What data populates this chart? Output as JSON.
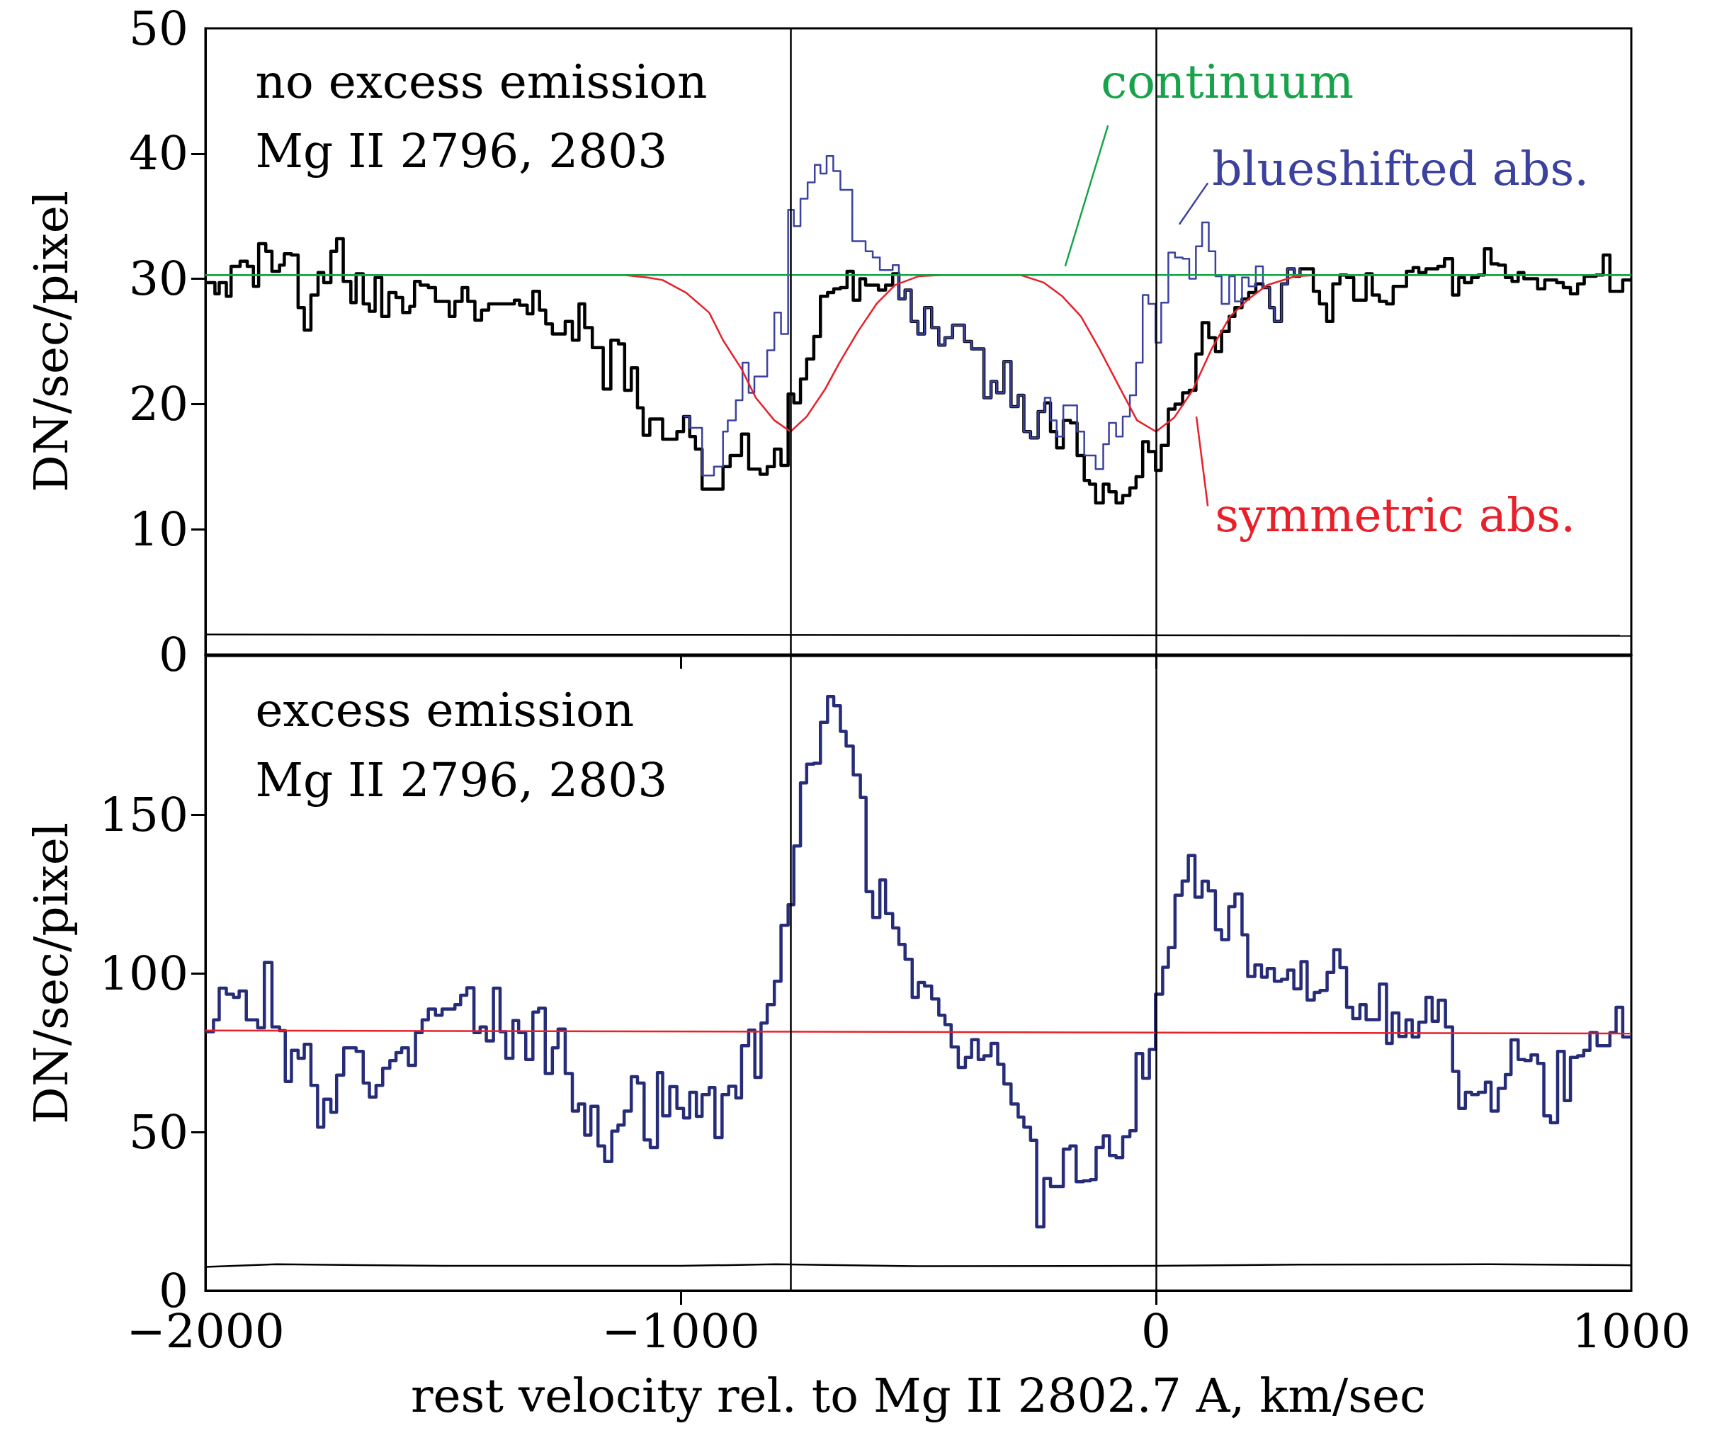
{
  "chart_data": [
    {
      "type": "step",
      "ylabel": "DN/sec/pixel",
      "annotations": [
        "no excess emission",
        "Mg II 2796, 2803"
      ],
      "xlim": [
        -2000,
        1000
      ],
      "xticks": [
        {
          "value": -2000,
          "label": null
        },
        {
          "value": -1000,
          "label": null
        },
        {
          "value": 0,
          "label": null
        },
        {
          "value": 1000,
          "label": null
        }
      ],
      "ylim": [
        0,
        50
      ],
      "yticks": [
        0,
        10,
        20,
        30,
        40,
        50
      ],
      "tick_labels": "y",
      "ref_lines": [
        {
          "axis": "x",
          "value": -768,
          "color": "#000000"
        },
        {
          "axis": "x",
          "value": 0,
          "color": "#000000"
        }
      ],
      "series": [
        {
          "color": "#000000",
          "x": [
            -2000,
            -1980,
            -1971,
            -1956,
            -1946,
            -1927,
            -1912,
            -1899,
            -1888,
            -1873,
            -1860,
            -1844,
            -1834,
            -1819,
            -1805,
            -1792,
            -1778,
            -1763,
            -1751,
            -1736,
            -1724,
            -1710,
            -1694,
            -1683,
            -1668,
            -1655,
            -1643,
            -1629,
            -1614,
            -1599,
            -1585,
            -1570,
            -1560,
            -1548,
            -1531,
            -1516,
            -1487,
            -1475,
            -1460,
            -1448,
            -1433,
            -1419,
            -1404,
            -1350,
            -1339,
            -1323,
            -1311,
            -1297,
            -1284,
            -1270,
            -1243,
            -1228,
            -1214,
            -1202,
            -1186,
            -1163,
            -1147,
            -1131,
            -1118,
            -1104,
            -1091,
            -1079,
            -1065,
            -1038,
            -1008,
            -994,
            -981,
            -969,
            -955,
            -911,
            -896,
            -872,
            -857,
            -833,
            -818,
            -803,
            -789,
            -774,
            -762,
            -748,
            -735,
            -720,
            -706,
            -691,
            -678,
            -664,
            -650,
            -637,
            -623,
            -611,
            -584,
            -569,
            -554,
            -541,
            -528,
            -515,
            -501,
            -487,
            -472,
            -457,
            -444,
            -428,
            -403,
            -388,
            -362,
            -347,
            -335,
            -320,
            -305,
            -290,
            -278,
            -264,
            -248,
            -234,
            -222,
            -209,
            -195,
            -180,
            -166,
            -151,
            -140,
            -127,
            -111,
            -99,
            -84,
            -70,
            -55,
            -42,
            -28,
            -16,
            -1,
            11,
            26,
            40,
            56,
            70,
            84,
            97,
            111,
            125,
            138,
            154,
            166,
            181,
            195,
            210,
            225,
            239,
            249,
            264,
            277,
            291,
            303,
            331,
            344,
            359,
            372,
            387,
            401,
            416,
            442,
            455,
            470,
            485,
            499,
            527,
            541,
            553,
            568,
            593,
            607,
            624,
            637,
            649,
            664,
            678,
            691,
            705,
            720,
            735,
            749,
            762,
            774,
            803,
            818,
            843,
            857,
            872,
            887,
            901,
            926,
            941,
            955,
            982,
            1000
          ],
          "values": [
            29.7,
            28.8,
            29.7,
            28.6,
            31,
            31.4,
            31,
            29.4,
            32.8,
            32.2,
            30.6,
            31.1,
            32,
            31.9,
            27.7,
            25.9,
            28.7,
            30.5,
            29.7,
            32.2,
            33.2,
            29.8,
            28.1,
            30.4,
            28,
            27.4,
            30.1,
            27,
            28.9,
            28.5,
            27.3,
            27.8,
            29.8,
            29.5,
            29.3,
            28.2,
            27,
            28.2,
            29.3,
            28.2,
            26.7,
            27.5,
            28,
            28.3,
            27.9,
            27.2,
            29,
            27.5,
            26.4,
            25.6,
            26.6,
            25.1,
            28,
            26.1,
            24.5,
            21.2,
            25.1,
            24.8,
            21.1,
            22.9,
            19.7,
            17.5,
            18.8,
            17.2,
            17.8,
            19,
            17.4,
            16.4,
            13.2,
            15,
            15.9,
            17.6,
            14.8,
            14.4,
            15,
            16.4,
            15.1,
            20.8,
            20.1,
            22,
            23.6,
            25.4,
            28.6,
            28.9,
            29.2,
            29.3,
            30.6,
            28.3,
            30,
            29.5,
            29.1,
            29.5,
            30.4,
            28.4,
            29.1,
            26.6,
            25.6,
            27.7,
            26.1,
            24.7,
            25.3,
            26.3,
            25,
            24.4,
            20.5,
            21.8,
            20.9,
            23.4,
            19.8,
            20.7,
            17.8,
            17.3,
            19.4,
            20.1,
            17.8,
            16.5,
            18.7,
            18.5,
            15.9,
            13.9,
            13.6,
            12.1,
            13.6,
            13,
            12.1,
            12.7,
            13.3,
            14.2,
            17,
            16.2,
            14.7,
            16.7,
            19.6,
            20,
            20.9,
            21.1,
            24,
            26.5,
            25.3,
            24.2,
            25.8,
            27,
            27.7,
            28.4,
            28.9,
            29.6,
            29.3,
            27.7,
            26.6,
            29.6,
            30.8,
            30.2,
            30.8,
            29,
            28,
            26.6,
            29.6,
            30.3,
            30.1,
            28.3,
            30.4,
            28.7,
            28.2,
            28,
            29.4,
            30.6,
            30.9,
            30.5,
            30.8,
            31,
            31.6,
            28.7,
            30.1,
            29.7,
            30.1,
            30.3,
            32.4,
            31.2,
            31.1,
            30.1,
            29.8,
            30.5,
            30,
            29.2,
            29.9,
            29.7,
            29.3,
            28.8,
            29.6,
            30.2,
            30.3,
            31.9,
            29,
            29.9,
            29.9
          ]
        },
        {
          "name": "blueshifted abs.",
          "color": "#3b429e",
          "x": [
            -994,
            -981,
            -955,
            -930,
            -911,
            -901,
            -884,
            -870,
            -857,
            -845,
            -818,
            -803,
            -789,
            -774,
            -762,
            -748,
            -733,
            -718,
            -706,
            -693,
            -679,
            -664,
            -639,
            -611,
            -596,
            -581,
            -554,
            -541,
            -528,
            -515,
            -501,
            -487,
            -472,
            -457,
            -444,
            -428,
            -403,
            -388,
            -362,
            -347,
            -335,
            -320,
            -305,
            -290,
            -278,
            -264,
            -248,
            -234,
            -222,
            -209,
            -195,
            -180,
            -166,
            -151,
            -140,
            -127,
            -111,
            -99,
            -84,
            -70,
            -55,
            -42,
            -28,
            -16,
            -1,
            11,
            26,
            40,
            56,
            70,
            84,
            97,
            111,
            125,
            138,
            154,
            166,
            181,
            195,
            210,
            225,
            239,
            249,
            264,
            277,
            291,
            303
          ],
          "values": [
            19,
            18.1,
            14.3,
            15,
            17.8,
            18.7,
            20.3,
            23.3,
            20.9,
            22.2,
            24.3,
            27.3,
            25.6,
            35.5,
            34.2,
            36.4,
            37.7,
            39.1,
            38.4,
            39.8,
            38.6,
            37.1,
            33,
            32.2,
            31.7,
            30.7,
            31.1,
            28.4,
            29.1,
            26.6,
            25.6,
            27.7,
            26.1,
            24.7,
            25.3,
            26.3,
            25,
            24.4,
            20.5,
            21.8,
            20.9,
            23.4,
            19.8,
            20.7,
            17.8,
            17.3,
            19.4,
            20.5,
            18.7,
            17.4,
            19.9,
            19.9,
            17.8,
            15.9,
            15.9,
            14.8,
            16.8,
            18.5,
            17.4,
            19,
            20.7,
            23.3,
            28.7,
            28,
            24.9,
            28.1,
            32.1,
            31.7,
            31.6,
            30,
            32.6,
            34.5,
            32.2,
            30.2,
            28,
            30.2,
            28.2,
            30.1,
            29.4,
            31,
            29.3,
            27.7,
            26.6,
            29.6,
            30.8,
            30.2,
            30.8
          ]
        },
        {
          "name": "symmetric abs.",
          "type": "line",
          "color": "#e8202a",
          "x": [
            -2000,
            -1120,
            -1070,
            -1038,
            -989,
            -940,
            -911,
            -872,
            -842,
            -803,
            -769,
            -735,
            -696,
            -666,
            -627,
            -588,
            -549,
            -500,
            -450,
            -285,
            -236,
            -197,
            -158,
            -119,
            -79,
            -40,
            0,
            38,
            77,
            117,
            156,
            195,
            234,
            293,
            342,
            1000
          ],
          "values": [
            30.3,
            30.3,
            30.1,
            29.9,
            28.9,
            27.3,
            25.1,
            22.8,
            20.5,
            18.7,
            17.8,
            19,
            21.2,
            23.3,
            25.8,
            28,
            29.5,
            30.2,
            30.3,
            30.3,
            29.7,
            28.6,
            27,
            24.4,
            21.5,
            18.7,
            17.8,
            18.9,
            21.1,
            24.4,
            27,
            28.4,
            29.5,
            30.2,
            30.3,
            30.3
          ]
        },
        {
          "name": "continuum",
          "type": "line",
          "color": "#17a34a",
          "x": [
            -2000,
            1000
          ],
          "values": [
            30.3,
            30.3
          ]
        },
        {
          "type": "line",
          "color": "#000000",
          "x": [
            -2000,
            1000
          ],
          "values": [
            1.6,
            1.5
          ]
        }
      ]
    },
    {
      "type": "step",
      "xlabel": "rest velocity rel. to Mg II 2802.7 A, km/sec",
      "ylabel": "DN/sec/pixel",
      "annotations": [
        "excess emission",
        "Mg II 2796, 2803"
      ],
      "xlim": [
        -2000,
        1000
      ],
      "xticks": [
        {
          "value": -2000,
          "label": "−2000"
        },
        {
          "value": -1000,
          "label": "−1000"
        },
        0,
        1000
      ],
      "ylim": [
        0,
        200
      ],
      "yticks": [
        0,
        50,
        100,
        150
      ],
      "ref_lines": [
        {
          "axis": "x",
          "value": -768,
          "color": "#000000"
        },
        {
          "axis": "x",
          "value": 0,
          "color": "#000000"
        }
      ],
      "series": [
        {
          "color": "#262c78",
          "x": [
            -2000,
            -1983,
            -1971,
            -1956,
            -1941,
            -1929,
            -1914,
            -1890,
            -1876,
            -1860,
            -1844,
            -1832,
            -1819,
            -1805,
            -1792,
            -1778,
            -1764,
            -1751,
            -1736,
            -1724,
            -1709,
            -1683,
            -1668,
            -1655,
            -1641,
            -1627,
            -1612,
            -1599,
            -1587,
            -1573,
            -1558,
            -1544,
            -1531,
            -1516,
            -1502,
            -1475,
            -1463,
            -1450,
            -1435,
            -1422,
            -1409,
            -1394,
            -1380,
            -1368,
            -1353,
            -1341,
            -1326,
            -1311,
            -1299,
            -1285,
            -1270,
            -1258,
            -1243,
            -1228,
            -1215,
            -1202,
            -1189,
            -1174,
            -1160,
            -1145,
            -1132,
            -1119,
            -1104,
            -1091,
            -1077,
            -1064,
            -1049,
            -1038,
            -1023,
            -1008,
            -994,
            -981,
            -967,
            -955,
            -940,
            -928,
            -913,
            -899,
            -884,
            -872,
            -857,
            -844,
            -831,
            -818,
            -803,
            -789,
            -774,
            -762,
            -748,
            -735,
            -720,
            -706,
            -691,
            -678,
            -664,
            -652,
            -637,
            -622,
            -610,
            -596,
            -581,
            -569,
            -554,
            -541,
            -528,
            -513,
            -500,
            -487,
            -472,
            -457,
            -444,
            -431,
            -416,
            -401,
            -388,
            -374,
            -362,
            -347,
            -333,
            -320,
            -305,
            -290,
            -278,
            -264,
            -251,
            -236,
            -222,
            -195,
            -181,
            -168,
            -153,
            -138,
            -126,
            -111,
            -98,
            -84,
            -70,
            -55,
            -42,
            -28,
            -14,
            -1,
            14,
            26,
            40,
            55,
            68,
            82,
            97,
            110,
            125,
            138,
            153,
            166,
            181,
            193,
            208,
            222,
            234,
            249,
            264,
            277,
            290,
            305,
            318,
            333,
            345,
            360,
            374,
            387,
            401,
            414,
            429,
            442,
            470,
            485,
            497,
            511,
            526,
            539,
            553,
            568,
            581,
            594,
            609,
            624,
            637,
            651,
            664,
            678,
            693,
            705,
            720,
            735,
            747,
            762,
            776,
            789,
            803,
            816,
            830,
            845,
            859,
            872,
            887,
            900,
            913,
            928,
            955,
            968,
            982,
            1000
          ],
          "values": [
            81.6,
            85.3,
            95.3,
            93.4,
            92.4,
            94.4,
            85.3,
            82.8,
            103.4,
            83.1,
            81.9,
            65.9,
            75.7,
            73.2,
            77.6,
            64.7,
            51.5,
            60.3,
            56.2,
            67.9,
            76.5,
            75.4,
            65.4,
            61,
            64.7,
            70.1,
            72.5,
            75,
            76.5,
            71,
            81.3,
            85.3,
            88.7,
            86.8,
            88.7,
            90.1,
            93.1,
            95.4,
            81.3,
            83.1,
            78.7,
            95.3,
            81.6,
            73.2,
            85.1,
            81.3,
            72.8,
            87.8,
            89,
            68.4,
            76.5,
            82.4,
            68.4,
            56.6,
            58.8,
            49,
            58.1,
            45.6,
            40.7,
            50.3,
            52.2,
            56.6,
            67.4,
            65.4,
            47.5,
            45.1,
            68.7,
            55.1,
            64.3,
            57.4,
            54.4,
            62.5,
            54.9,
            61.8,
            64,
            48.2,
            61.8,
            64.4,
            60.7,
            77.2,
            82.1,
            67.2,
            84.3,
            90.1,
            97.5,
            115.1,
            121.6,
            140.1,
            160,
            165.9,
            166.2,
            179.1,
            187.2,
            184.3,
            176.2,
            171.6,
            162.5,
            155.4,
            125.7,
            117.6,
            129.4,
            118.8,
            114.3,
            109.1,
            104.4,
            92.4,
            97.1,
            96,
            91.9,
            86.8,
            83.8,
            76.8,
            70.3,
            73.5,
            79.1,
            72.8,
            74,
            77.9,
            71.3,
            65.1,
            58.8,
            54.7,
            51.5,
            47.4,
            20.1,
            35.3,
            32.8,
            44.6,
            45.6,
            34.3,
            34.6,
            35,
            45.1,
            48.8,
            42.6,
            41.9,
            48.5,
            50.4,
            74.7,
            66.9,
            76,
            93.4,
            101.9,
            108.1,
            124.6,
            129.1,
            137.1,
            124,
            129,
            126,
            113.7,
            110.6,
            121,
            125,
            112.1,
            99,
            102.6,
            98.8,
            101.5,
            97.5,
            98.1,
            101,
            95.1,
            103.7,
            91.6,
            94,
            94.6,
            100.3,
            107.4,
            101.8,
            89.3,
            85.7,
            90.1,
            85.4,
            96.6,
            77.9,
            87.5,
            80.1,
            85.3,
            79.9,
            84.6,
            92.4,
            84.9,
            91.5,
            83.1,
            69.1,
            57.4,
            62.5,
            61.8,
            62.5,
            65.7,
            56.6,
            63.7,
            68.1,
            79,
            72.8,
            72.5,
            74.3,
            71.6,
            55.1,
            52.9,
            75.4,
            59.9,
            73.5,
            74,
            75.7,
            81.3,
            77.2,
            81.3,
            89.3,
            79.9,
            79.9
          ]
        },
        {
          "type": "line",
          "color": "#e8202a",
          "x": [
            -2000,
            1000
          ],
          "values": [
            82,
            81
          ]
        },
        {
          "type": "line",
          "color": "#000000",
          "x": [
            -2000,
            -1850,
            -1500,
            -1000,
            -800,
            -500,
            0,
            300,
            700,
            1000
          ],
          "values": [
            7.5,
            8.3,
            7.8,
            7.8,
            8.3,
            7.7,
            7.8,
            8.2,
            8.3,
            8
          ]
        }
      ]
    }
  ]
}
